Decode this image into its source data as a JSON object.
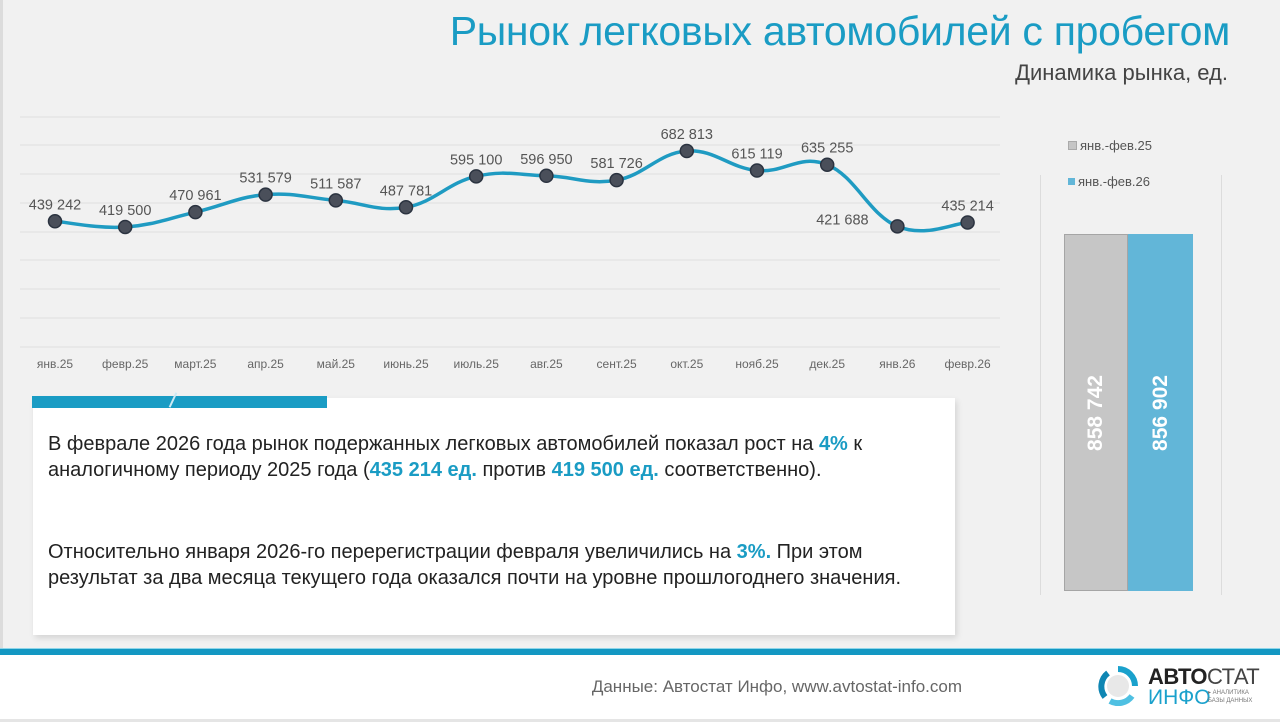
{
  "header": {
    "title": "Рынок легковых автомобилей с пробегом",
    "subtitle": "Динамика рынка, ед."
  },
  "chart_data": [
    {
      "type": "line",
      "title": "Динамика рынка, ед.",
      "xlabel": "",
      "ylabel": "",
      "grid": true,
      "categories": [
        "янв.25",
        "февр.25",
        "март.25",
        "апр.25",
        "май.25",
        "июнь.25",
        "июль.25",
        "авг.25",
        "сент.25",
        "окт.25",
        "нояб.25",
        "дек.25",
        "янв.26",
        "февр.26"
      ],
      "values": [
        439242,
        419500,
        470961,
        531579,
        511587,
        487781,
        595100,
        596950,
        581726,
        682813,
        615119,
        635255,
        421688,
        435214
      ],
      "labels": [
        "439 242",
        "419 500",
        "470 961",
        "531 579",
        "511 587",
        "487 781",
        "595 100",
        "596 950",
        "581 726",
        "682 813",
        "615 119",
        "635 255",
        "421 688",
        "435 214"
      ],
      "series_color": "#1f9bc2",
      "marker_color": "#4a4f5a"
    },
    {
      "type": "bar",
      "categories": [
        "янв.-фев.25",
        "янв.-фев.26"
      ],
      "values": [
        858742,
        856902
      ],
      "labels": [
        "858 742",
        "856 902"
      ],
      "colors": [
        "#c6c6c6",
        "#62b6d8"
      ],
      "legend_position": "top"
    }
  ],
  "legend": {
    "items": [
      {
        "label": "янв.-фев.25",
        "color": "#c6c6c6"
      },
      {
        "label": "янв.-фев.26",
        "color": "#62b6d8"
      }
    ]
  },
  "text": {
    "p1": {
      "a": "В феврале 2026 года рынок подержанных легковых автомобилей показал рост на ",
      "b": "4%",
      "c": " к аналогичному периоду 2025 года (",
      "d": "435 214 ед.",
      "e": " против ",
      "f": "419 500 ед.",
      "g": " соответственно)."
    },
    "p2": {
      "a": "Относительно января 2026-го перерегистрации февраля увеличились на ",
      "b": "3%.",
      "c": " При этом результат за два месяца текущего года оказался почти на уровне прошлогоднего значения."
    }
  },
  "footer": {
    "source": "Данные: Автостат Инфо, www.avtostat-info.com",
    "logo": {
      "bold": "АВТО",
      "light": "СТАТ",
      "bottom": "ИНФО",
      "tag1": "▸ АНАЛИТИКА",
      "tag2": "БАЗЫ ДАННЫХ"
    }
  },
  "colors": {
    "accent": "#1a9cc4",
    "background": "#f1f1f1"
  }
}
